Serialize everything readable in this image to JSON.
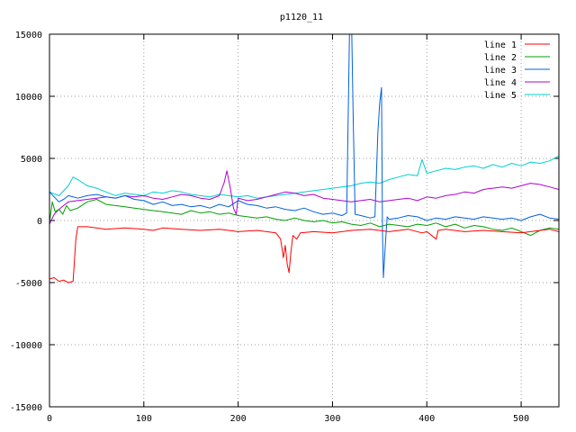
{
  "chart_data": {
    "type": "line",
    "title": "p1120_11",
    "xlabel": "",
    "ylabel": "",
    "xlim": [
      0,
      540
    ],
    "ylim": [
      -15000,
      15000
    ],
    "x_ticks": [
      "0",
      "100",
      "200",
      "300",
      "400",
      "500"
    ],
    "y_ticks": [
      "-15000",
      "-10000",
      "-5000",
      "0",
      "5000",
      "10000",
      "15000"
    ],
    "grid": true,
    "legend_position": "top-right",
    "series": [
      {
        "name": "line 1",
        "color": "#ff0000",
        "points": [
          [
            0,
            -4700
          ],
          [
            5,
            -4600
          ],
          [
            10,
            -4900
          ],
          [
            15,
            -4800
          ],
          [
            20,
            -5000
          ],
          [
            25,
            -4900
          ],
          [
            28,
            -1500
          ],
          [
            30,
            -500
          ],
          [
            40,
            -500
          ],
          [
            60,
            -700
          ],
          [
            80,
            -600
          ],
          [
            100,
            -700
          ],
          [
            110,
            -800
          ],
          [
            120,
            -600
          ],
          [
            140,
            -700
          ],
          [
            160,
            -800
          ],
          [
            180,
            -700
          ],
          [
            200,
            -900
          ],
          [
            220,
            -800
          ],
          [
            240,
            -1000
          ],
          [
            245,
            -1500
          ],
          [
            248,
            -3000
          ],
          [
            250,
            -2000
          ],
          [
            252,
            -3500
          ],
          [
            254,
            -4200
          ],
          [
            256,
            -2500
          ],
          [
            258,
            -1200
          ],
          [
            262,
            -1500
          ],
          [
            266,
            -1000
          ],
          [
            280,
            -900
          ],
          [
            300,
            -1000
          ],
          [
            320,
            -800
          ],
          [
            340,
            -700
          ],
          [
            360,
            -900
          ],
          [
            380,
            -700
          ],
          [
            395,
            -1000
          ],
          [
            400,
            -900
          ],
          [
            410,
            -1500
          ],
          [
            412,
            -800
          ],
          [
            420,
            -700
          ],
          [
            440,
            -900
          ],
          [
            460,
            -800
          ],
          [
            480,
            -900
          ],
          [
            500,
            -1000
          ],
          [
            520,
            -800
          ],
          [
            530,
            -700
          ],
          [
            540,
            -900
          ]
        ]
      },
      {
        "name": "line 2",
        "color": "#00a000",
        "points": [
          [
            0,
            -200
          ],
          [
            3,
            1500
          ],
          [
            6,
            700
          ],
          [
            10,
            900
          ],
          [
            14,
            500
          ],
          [
            18,
            1200
          ],
          [
            22,
            800
          ],
          [
            30,
            1000
          ],
          [
            40,
            1500
          ],
          [
            50,
            1700
          ],
          [
            60,
            1300
          ],
          [
            70,
            1200
          ],
          [
            80,
            1100
          ],
          [
            90,
            1000
          ],
          [
            100,
            900
          ],
          [
            110,
            800
          ],
          [
            120,
            700
          ],
          [
            130,
            600
          ],
          [
            140,
            500
          ],
          [
            150,
            800
          ],
          [
            160,
            600
          ],
          [
            170,
            700
          ],
          [
            180,
            500
          ],
          [
            190,
            600
          ],
          [
            200,
            400
          ],
          [
            210,
            300
          ],
          [
            220,
            200
          ],
          [
            230,
            300
          ],
          [
            240,
            100
          ],
          [
            250,
            0
          ],
          [
            260,
            200
          ],
          [
            270,
            0
          ],
          [
            280,
            -100
          ],
          [
            290,
            0
          ],
          [
            300,
            -200
          ],
          [
            310,
            -100
          ],
          [
            320,
            -300
          ],
          [
            330,
            -400
          ],
          [
            340,
            -200
          ],
          [
            350,
            -500
          ],
          [
            360,
            -300
          ],
          [
            370,
            -400
          ],
          [
            380,
            -500
          ],
          [
            390,
            -300
          ],
          [
            400,
            -400
          ],
          [
            410,
            -200
          ],
          [
            420,
            -500
          ],
          [
            430,
            -300
          ],
          [
            440,
            -600
          ],
          [
            450,
            -400
          ],
          [
            460,
            -500
          ],
          [
            470,
            -700
          ],
          [
            480,
            -800
          ],
          [
            490,
            -600
          ],
          [
            500,
            -900
          ],
          [
            510,
            -1200
          ],
          [
            520,
            -800
          ],
          [
            530,
            -600
          ],
          [
            540,
            -700
          ]
        ]
      },
      {
        "name": "line 3",
        "color": "#0060e0",
        "points": [
          [
            0,
            2300
          ],
          [
            5,
            1900
          ],
          [
            10,
            1500
          ],
          [
            15,
            1700
          ],
          [
            20,
            2000
          ],
          [
            30,
            1800
          ],
          [
            40,
            2000
          ],
          [
            50,
            2100
          ],
          [
            60,
            1900
          ],
          [
            70,
            1800
          ],
          [
            80,
            2000
          ],
          [
            90,
            1700
          ],
          [
            100,
            1600
          ],
          [
            110,
            1300
          ],
          [
            120,
            1500
          ],
          [
            130,
            1200
          ],
          [
            140,
            1300
          ],
          [
            150,
            1100
          ],
          [
            160,
            1200
          ],
          [
            170,
            1000
          ],
          [
            180,
            1300
          ],
          [
            190,
            1100
          ],
          [
            200,
            1600
          ],
          [
            210,
            1300
          ],
          [
            220,
            1200
          ],
          [
            230,
            1000
          ],
          [
            240,
            1100
          ],
          [
            250,
            900
          ],
          [
            260,
            800
          ],
          [
            270,
            1000
          ],
          [
            280,
            700
          ],
          [
            290,
            500
          ],
          [
            300,
            600
          ],
          [
            310,
            400
          ],
          [
            315,
            600
          ],
          [
            318,
            15000
          ],
          [
            320,
            17000
          ],
          [
            322,
            8000
          ],
          [
            324,
            500
          ],
          [
            330,
            400
          ],
          [
            340,
            200
          ],
          [
            345,
            300
          ],
          [
            348,
            7000
          ],
          [
            350,
            9500
          ],
          [
            352,
            10700
          ],
          [
            353,
            -1000
          ],
          [
            354,
            -4600
          ],
          [
            356,
            -2000
          ],
          [
            358,
            300
          ],
          [
            360,
            100
          ],
          [
            370,
            200
          ],
          [
            380,
            400
          ],
          [
            390,
            300
          ],
          [
            400,
            0
          ],
          [
            410,
            200
          ],
          [
            420,
            100
          ],
          [
            430,
            300
          ],
          [
            440,
            200
          ],
          [
            450,
            100
          ],
          [
            460,
            300
          ],
          [
            470,
            200
          ],
          [
            480,
            100
          ],
          [
            490,
            200
          ],
          [
            500,
            0
          ],
          [
            510,
            300
          ],
          [
            520,
            500
          ],
          [
            530,
            200
          ],
          [
            540,
            100
          ]
        ]
      },
      {
        "name": "line 4",
        "color": "#b000d0",
        "points": [
          [
            0,
            -300
          ],
          [
            5,
            500
          ],
          [
            10,
            900
          ],
          [
            15,
            1200
          ],
          [
            20,
            1500
          ],
          [
            30,
            1600
          ],
          [
            40,
            1700
          ],
          [
            50,
            1800
          ],
          [
            60,
            1900
          ],
          [
            70,
            1800
          ],
          [
            80,
            2000
          ],
          [
            90,
            1900
          ],
          [
            100,
            2000
          ],
          [
            110,
            1800
          ],
          [
            120,
            1700
          ],
          [
            130,
            1900
          ],
          [
            140,
            2100
          ],
          [
            150,
            2000
          ],
          [
            160,
            1800
          ],
          [
            170,
            1700
          ],
          [
            180,
            2000
          ],
          [
            185,
            3000
          ],
          [
            188,
            4000
          ],
          [
            192,
            2500
          ],
          [
            195,
            1000
          ],
          [
            198,
            500
          ],
          [
            200,
            1800
          ],
          [
            210,
            1600
          ],
          [
            220,
            1700
          ],
          [
            230,
            1900
          ],
          [
            240,
            2100
          ],
          [
            250,
            2300
          ],
          [
            260,
            2200
          ],
          [
            270,
            2000
          ],
          [
            280,
            2100
          ],
          [
            290,
            1800
          ],
          [
            300,
            1700
          ],
          [
            310,
            1600
          ],
          [
            320,
            1500
          ],
          [
            330,
            1600
          ],
          [
            340,
            1700
          ],
          [
            350,
            1500
          ],
          [
            360,
            1600
          ],
          [
            370,
            1700
          ],
          [
            380,
            1800
          ],
          [
            390,
            1600
          ],
          [
            400,
            1900
          ],
          [
            410,
            1800
          ],
          [
            420,
            2000
          ],
          [
            430,
            2100
          ],
          [
            440,
            2300
          ],
          [
            450,
            2200
          ],
          [
            460,
            2500
          ],
          [
            470,
            2600
          ],
          [
            480,
            2700
          ],
          [
            490,
            2600
          ],
          [
            500,
            2800
          ],
          [
            510,
            3000
          ],
          [
            520,
            2900
          ],
          [
            530,
            2700
          ],
          [
            540,
            2500
          ]
        ]
      },
      {
        "name": "line 5",
        "color": "#00d0d0",
        "points": [
          [
            0,
            2300
          ],
          [
            10,
            2000
          ],
          [
            20,
            2800
          ],
          [
            25,
            3500
          ],
          [
            30,
            3300
          ],
          [
            40,
            2800
          ],
          [
            50,
            2600
          ],
          [
            60,
            2300
          ],
          [
            70,
            2000
          ],
          [
            80,
            2200
          ],
          [
            90,
            2100
          ],
          [
            100,
            2000
          ],
          [
            110,
            2300
          ],
          [
            120,
            2200
          ],
          [
            130,
            2400
          ],
          [
            140,
            2300
          ],
          [
            150,
            2100
          ],
          [
            160,
            2000
          ],
          [
            170,
            1900
          ],
          [
            180,
            2100
          ],
          [
            190,
            2000
          ],
          [
            200,
            1900
          ],
          [
            210,
            2000
          ],
          [
            220,
            1800
          ],
          [
            230,
            1900
          ],
          [
            240,
            2000
          ],
          [
            250,
            2100
          ],
          [
            260,
            2200
          ],
          [
            270,
            2300
          ],
          [
            280,
            2400
          ],
          [
            290,
            2500
          ],
          [
            300,
            2600
          ],
          [
            310,
            2700
          ],
          [
            320,
            2800
          ],
          [
            330,
            3000
          ],
          [
            340,
            3100
          ],
          [
            350,
            3000
          ],
          [
            360,
            3300
          ],
          [
            370,
            3500
          ],
          [
            380,
            3700
          ],
          [
            390,
            3600
          ],
          [
            395,
            4900
          ],
          [
            400,
            3800
          ],
          [
            410,
            4000
          ],
          [
            420,
            4200
          ],
          [
            430,
            4100
          ],
          [
            440,
            4300
          ],
          [
            450,
            4400
          ],
          [
            460,
            4200
          ],
          [
            470,
            4500
          ],
          [
            480,
            4300
          ],
          [
            490,
            4600
          ],
          [
            500,
            4400
          ],
          [
            510,
            4700
          ],
          [
            520,
            4600
          ],
          [
            530,
            4800
          ],
          [
            540,
            5200
          ]
        ]
      }
    ]
  }
}
